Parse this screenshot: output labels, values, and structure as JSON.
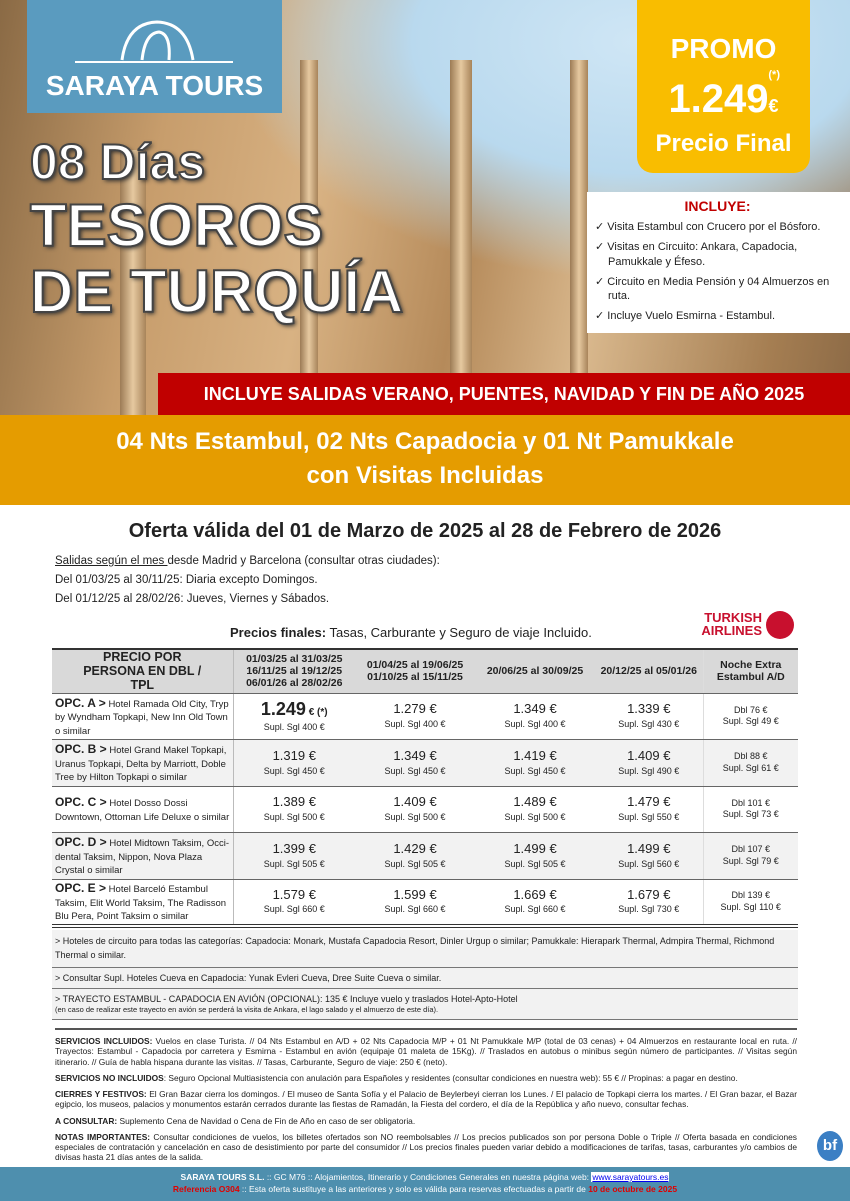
{
  "brand": {
    "name": "SARAYA TOURS"
  },
  "hero": {
    "line1": "08 Días",
    "line2": "TESOROS",
    "line3": "DE TURQUÍA"
  },
  "promo": {
    "label": "PROMO",
    "note": "(*)",
    "price": "1.249",
    "currency": "€",
    "sub": "Precio Final"
  },
  "includes": {
    "title": "INCLUYE:",
    "items": [
      "Visita Estambul con Crucero por el Bósforo.",
      "Visitas en Circuito: Ankara, Capadocia, Pamukkale y Éfeso.",
      "Circuito en Media Pensión y 04 Almuerzos en ruta.",
      "Incluye Vuelo Esmirna - Estambul."
    ]
  },
  "banner": "INCLUYE SALIDAS VERANO, PUENTES, NAVIDAD Y FIN DE AÑO 2025",
  "subtitle": {
    "line1": "04 Nts Estambul, 02 Nts Capadocia y 01 Nt Pamukkale",
    "line2": "con Visitas Incluidas"
  },
  "offer": "Oferta válida del 01 de Marzo de 2025 al 28 de Febrero de 2026",
  "departures": {
    "underlined": "Salidas según el mes ",
    "rest": "desde Madrid y Barcelona (consultar otras ciudades):",
    "line2": "Del 01/03/25 al 30/11/25: Diaria excepto Domingos.",
    "line3": "Del 01/12/25 al 28/02/26: Jueves, Viernes y Sábados."
  },
  "prices_note": {
    "bold": "Precios finales:",
    "rest": " Tasas, Carburante y Seguro de viaje Incluido."
  },
  "airline": {
    "line1": "TURKISH",
    "line2": "AIRLINES",
    "color": "#c8102e"
  },
  "table": {
    "headers": [
      "PRECIO POR PERSONA EN DBL / TPL",
      "01/03/25 al 31/03/25 16/11/25 al 19/12/25 06/01/26 al 28/02/26",
      "01/04/25 al 19/06/25 01/10/25 al 15/11/25",
      "20/06/25 al 30/09/25",
      "20/12/25 al 05/01/26",
      "Noche Extra Estambul A/D"
    ],
    "rows": [
      {
        "opt": "OPC. A >",
        "hotels": "Hotel Ramada Old City, Tryp by Wyndham Topkapi, New Inn Old Town o similar",
        "prices": [
          [
            "1.249",
            "€ (*)",
            "Supl. Sgl 400 €"
          ],
          [
            "1.279 €",
            "",
            "Supl. Sgl 400 €"
          ],
          [
            "1.349 €",
            "",
            "Supl. Sgl 400 €"
          ],
          [
            "1.339 €",
            "",
            "Supl. Sgl 430 €"
          ]
        ],
        "extra": [
          "Dbl 76 €",
          "Supl. Sgl 49 €"
        ]
      },
      {
        "opt": "OPC. B >",
        "hotels": "Hotel Grand Makel Topkapi, Uranus Topkapi, Delta by Marriott, Doble Tree by Hilton Topkapi o similar",
        "prices": [
          [
            "1.319 €",
            "",
            "Supl. Sgl 450 €"
          ],
          [
            "1.349 €",
            "",
            "Supl. Sgl 450 €"
          ],
          [
            "1.419 €",
            "",
            "Supl. Sgl 450 €"
          ],
          [
            "1.409 €",
            "",
            "Supl. Sgl 490 €"
          ]
        ],
        "extra": [
          "Dbl 88 €",
          "Supl. Sgl 61 €"
        ]
      },
      {
        "opt": "OPC. C >",
        "hotels": "Hotel Dosso Dossi Downtown, Ottoman Life Deluxe o similar",
        "prices": [
          [
            "1.389 €",
            "",
            "Supl. Sgl 500 €"
          ],
          [
            "1.409 €",
            "",
            "Supl. Sgl 500 €"
          ],
          [
            "1.489 €",
            "",
            "Supl. Sgl 500 €"
          ],
          [
            "1.479 €",
            "",
            "Supl. Sgl 550 €"
          ]
        ],
        "extra": [
          "Dbl 101 €",
          "Supl. Sgl 73 €"
        ]
      },
      {
        "opt": "OPC. D >",
        "hotels": "Hotel Midtown Taksim, Occi-dental Taksim, Nippon, Nova Plaza Crystal o similar",
        "prices": [
          [
            "1.399 €",
            "",
            "Supl. Sgl 505 €"
          ],
          [
            "1.429 €",
            "",
            "Supl. Sgl 505 €"
          ],
          [
            "1.499 €",
            "",
            "Supl. Sgl 505 €"
          ],
          [
            "1.499 €",
            "",
            "Supl. Sgl 560 €"
          ]
        ],
        "extra": [
          "Dbl 107 €",
          "Supl. Sgl 79 €"
        ]
      },
      {
        "opt": "OPC. E >",
        "hotels": "Hotel Barceló Estambul Taksim, Elit World Taksim, The Radisson Blu Pera, Point Taksim o similar",
        "prices": [
          [
            "1.579 €",
            "",
            "Supl. Sgl 660 €"
          ],
          [
            "1.599 €",
            "",
            "Supl. Sgl 660 €"
          ],
          [
            "1.669 €",
            "",
            "Supl. Sgl 660 €"
          ],
          [
            "1.679 €",
            "",
            "Supl. Sgl 730 €"
          ]
        ],
        "extra": [
          "Dbl 139 €",
          "Supl. Sgl 110 €"
        ]
      }
    ]
  },
  "notes": [
    "> Hoteles de circuito para todas las categorías: Capadocia: Monark, Mustafa Capadocia Resort, Dinler Urgup o similar; Pamukkale: Hierapark Thermal, Admpira Thermal, Richmond Thermal o similar.",
    "> Consultar Supl. Hoteles Cueva en Capadocia: Yunak Evleri Cueva, Dree Suite Cueva o similar.",
    "> TRAYECTO ESTAMBUL - CAPADOCIA EN AVIÓN (OPCIONAL): 135 € Incluye vuelo y traslados Hotel-Apto-Hotel"
  ],
  "notes_small": "(en caso de realizar este trayecto en avión se perderá la visita de Ankara, el lago salado y el almuerzo de este día).",
  "conditions": [
    {
      "k": "SERVICIOS INCLUIDOS:",
      "v": " Vuelos en clase Turista. // 04 Nts Estambul en A/D + 02 Nts Capadocia M/P + 01 Nt Pamukkale M/P (total de 03 cenas) + 04 Almuerzos en restaurante local en ruta. // Trayectos: Estambul - Capadocia por carretera y Esmirna - Estambul en avión (equipaje 01 maleta de 15Kg). // Traslados en autobus o minibus según número de participantes. // Visitas según itinerario. // Guía de habla hispana durante las visitas. // Tasas, Carburante, Seguro de viaje: 250 € (neto)."
    },
    {
      "k": "SERVICIOS NO INCLUIDOS",
      "v": ": Seguro Opcional Multiasistencia con anulación para Españoles y residentes (consultar condiciones en nuestra web): 55 € // Propinas: a pagar en destino."
    },
    {
      "k": "CIERRES Y FESTIVOS:",
      "v": " El Gran Bazar cierra los domingos. / El museo de Santa Sofía y el Palacio de Beylerbeyi cierran los Lunes. / El palacio de Topkapi cierra los martes. / El Gran bazar, el Bazar egipcio, los museos, palacios y monumentos estarán cerrados durante las fiestas de Ramadán, la Fiesta del cordero, el día de la República y año nuevo, consultar fechas."
    },
    {
      "k": "A CONSULTAR:",
      "v": " Suplemento Cena de Navidad o Cena de Fin de Año en caso de ser obligatoria."
    },
    {
      "k": "NOTAS IMPORTANTES:",
      "v": " Consultar condiciones de vuelos, los billetes ofertados son NO reembolsables // Los precios publicados son por persona Doble o Triple // Oferta basada en condiciones especiales de contratación y cancelación en caso de desistimiento por parte del consumidor // Los precios finales pueden variar debido a modificaciones de tarifas, tasas, carburantes y/o cambios de divisas hasta 21 días antes de la salida."
    }
  ],
  "badge": "bf",
  "footer": {
    "company": "SARAYA TOURS S.L.",
    "line1": " :: GC M76 ::  Alojamientos, Itinerario y Condiciones Generales en nuestra página web: ",
    "url": "www.sarayatours.es",
    "ref": "Referencia O304",
    "line2": " :: Esta oferta sustituye a las anteriores y solo es válida para reservas efectuadas a partir de ",
    "date": "10 de octubre de 2025"
  }
}
